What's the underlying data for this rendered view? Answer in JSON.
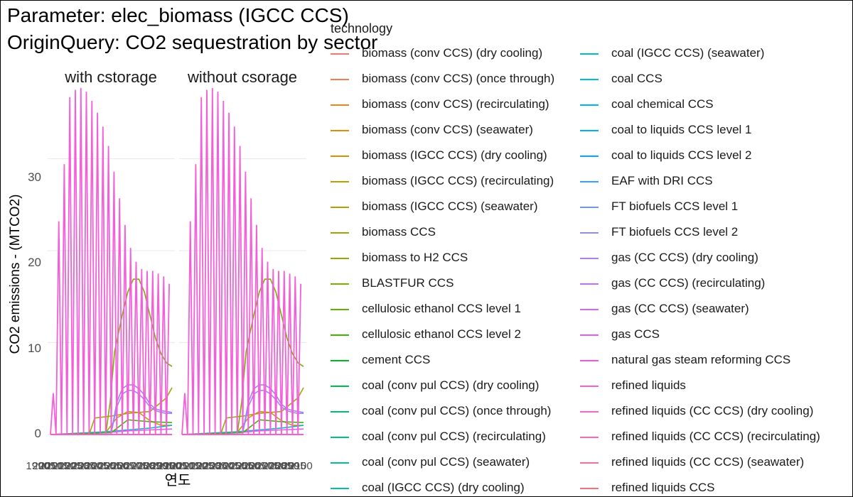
{
  "title": {
    "line1": "Parameter: elec_biomass (IGCC CCS)",
    "line2": "OriginQuery: CO2 sequestration by sector"
  },
  "chart_data": {
    "type": "line",
    "facets": [
      "with cstorage",
      "without csorage"
    ],
    "xlabel": "연도",
    "ylabel": "CO2 emissions - (MTCO2)",
    "x_tick_labels": [
      "1990",
      "2005",
      "2010",
      "2015",
      "2020",
      "2025",
      "2030",
      "2035",
      "2040",
      "2045",
      "2050",
      "2055",
      "2060",
      "2065",
      "2070",
      "2075",
      "2080",
      "2085",
      "2090",
      "2095",
      "2100"
    ],
    "xlim": [
      1990,
      2100
    ],
    "ylim": [
      0,
      38
    ],
    "y_ticks": [
      0,
      10,
      20,
      30
    ],
    "grid": true,
    "legend_title": "technology",
    "legend_position": "right",
    "series": [
      {
        "name": "biomass (conv CCS) (dry cooling)",
        "color": "#F8766D"
      },
      {
        "name": "biomass (conv CCS) (once through)",
        "color": "#F07E4A"
      },
      {
        "name": "biomass (conv CCS) (recirculating)",
        "color": "#E7851E"
      },
      {
        "name": "biomass (conv CCS) (seawater)",
        "color": "#DC8D00"
      },
      {
        "name": "biomass (IGCC CCS) (dry cooling)",
        "color": "#D09400"
      },
      {
        "name": "biomass (IGCC CCS) (recirculating)",
        "color": "#C39A00"
      },
      {
        "name": "biomass (IGCC CCS) (seawater)",
        "color": "#B4A000"
      },
      {
        "name": "biomass CCS",
        "color": "#A3A500"
      },
      {
        "name": "biomass to H2 CCS",
        "color": "#91AA00"
      },
      {
        "name": "BLASTFUR CCS",
        "color": "#7CAE00"
      },
      {
        "name": "cellulosic ethanol CCS level 1",
        "color": "#62B200"
      },
      {
        "name": "cellulosic ethanol CCS level 2",
        "color": "#3DB600"
      },
      {
        "name": "cement CCS",
        "color": "#00B925"
      },
      {
        "name": "coal (conv pul CCS) (dry cooling)",
        "color": "#00BB4E"
      },
      {
        "name": "coal (conv pul CCS) (once through)",
        "color": "#00BE6A"
      },
      {
        "name": "coal (conv pul CCS) (recirculating)",
        "color": "#00BF81"
      },
      {
        "name": "coal (conv pul CCS) (seawater)",
        "color": "#00C096"
      },
      {
        "name": "coal (IGCC CCS) (dry cooling)",
        "color": "#00C0AA"
      },
      {
        "name": "coal (IGCC CCS) (seawater)",
        "color": "#00BFC4"
      },
      {
        "name": "coal CCS",
        "color": "#00BCD8"
      },
      {
        "name": "coal chemical CCS",
        "color": "#00B8E7"
      },
      {
        "name": "coal to liquids CCS level 1",
        "color": "#00B2F3"
      },
      {
        "name": "coal to liquids CCS level 2",
        "color": "#00ABFD"
      },
      {
        "name": "EAF with DRI CCS",
        "color": "#35A2FF"
      },
      {
        "name": "FT biofuels CCS level 1",
        "color": "#6B97FF"
      },
      {
        "name": "FT biofuels CCS level 2",
        "color": "#8F8AFF"
      },
      {
        "name": "gas (CC CCS) (dry cooling)",
        "color": "#AB7CFF"
      },
      {
        "name": "gas (CC CCS) (recirculating)",
        "color": "#C26FFF"
      },
      {
        "name": "gas (CC CCS) (seawater)",
        "color": "#D563FC"
      },
      {
        "name": "gas CCS",
        "color": "#E45AF2"
      },
      {
        "name": "natural gas steam reforming CCS",
        "color": "#EF58E6"
      },
      {
        "name": "refined liquids",
        "color": "#F85ED6"
      },
      {
        "name": "refined liquids (CC CCS) (dry cooling)",
        "color": "#FD63C4"
      },
      {
        "name": "refined liquids (CC CCS) (recirculating)",
        "color": "#FF67AE"
      },
      {
        "name": "refined liquids (CC CCS) (seawater)",
        "color": "#FF6C94"
      },
      {
        "name": "refined liquids CCS",
        "color": "#FE6E7A"
      }
    ],
    "plotted": {
      "zigzag": {
        "color": "#F45FD8",
        "x_start": 1990,
        "x_step": 2.5,
        "peaks_x": [
          1992.5,
          1997.5,
          2002.5,
          2007.5,
          2012.5,
          2017.5,
          2022.5,
          2027.5,
          2032.5,
          2037.5,
          2042.5,
          2047.5,
          2052.5,
          2057.5,
          2062.5,
          2067.5,
          2072.5,
          2077.5,
          2082.5,
          2087.5,
          2092.5,
          2097.5
        ],
        "peaks_y": [
          4.5,
          23.2,
          29.4,
          36.7,
          37.5,
          37.7,
          37.3,
          36.3,
          35.0,
          33.5,
          31.4,
          28.6,
          25.7,
          22.8,
          20.3,
          18.8,
          18.0,
          17.8,
          17.8,
          17.5,
          17.2,
          16.4
        ]
      },
      "curves": [
        {
          "color": "#7CAE00",
          "x": [
            1990,
            2040,
            2044,
            2048,
            2055,
            2060,
            2065,
            2070,
            2075,
            2080,
            2085,
            2090,
            2095,
            2100
          ],
          "y": [
            0,
            0,
            3.5,
            9.0,
            13.0,
            15.5,
            16.9,
            16.9,
            15.5,
            13.0,
            10.5,
            8.8,
            7.8,
            7.4
          ]
        },
        {
          "color": "#A3A500",
          "x": [
            1990,
            2025,
            2030,
            2045,
            2060,
            2080,
            2095,
            2100
          ],
          "y": [
            0,
            0,
            1.8,
            2.0,
            2.3,
            2.5,
            4.0,
            5.1
          ]
        },
        {
          "color": "#C39A00",
          "x": [
            1990,
            2040,
            2050,
            2060,
            2070,
            2080,
            2090,
            2100
          ],
          "y": [
            0,
            0.2,
            1.8,
            2.5,
            2.4,
            1.5,
            1.0,
            1.0
          ]
        },
        {
          "color": "#AB7CFF",
          "x": [
            1990,
            2045,
            2050,
            2055,
            2060,
            2065,
            2070,
            2075,
            2080,
            2085,
            2090,
            2095,
            2100
          ],
          "y": [
            0,
            0.2,
            3.5,
            5.0,
            5.4,
            5.4,
            5.0,
            4.3,
            3.3,
            2.8,
            2.6,
            2.5,
            2.4
          ]
        },
        {
          "color": "#8F8AFF",
          "x": [
            1990,
            2045,
            2050,
            2055,
            2060,
            2065,
            2070,
            2075,
            2080,
            2085,
            2090,
            2095,
            2100
          ],
          "y": [
            0,
            0.2,
            3.0,
            4.4,
            4.8,
            4.8,
            4.4,
            3.8,
            3.0,
            2.6,
            2.4,
            2.3,
            2.3
          ]
        },
        {
          "color": "#00BFC4",
          "x": [
            1990,
            2040,
            2060,
            2080,
            2100
          ],
          "y": [
            0,
            0.3,
            0.5,
            0.7,
            1.0
          ]
        },
        {
          "color": "#E45AF2",
          "x": [
            1990,
            2040,
            2060,
            2080,
            2100
          ],
          "y": [
            0,
            0.2,
            0.4,
            0.5,
            0.6
          ]
        },
        {
          "color": "#3DB600",
          "x": [
            1990,
            2045,
            2060,
            2080,
            2100
          ],
          "y": [
            0,
            0.2,
            1.6,
            1.4,
            1.3
          ]
        }
      ]
    }
  }
}
